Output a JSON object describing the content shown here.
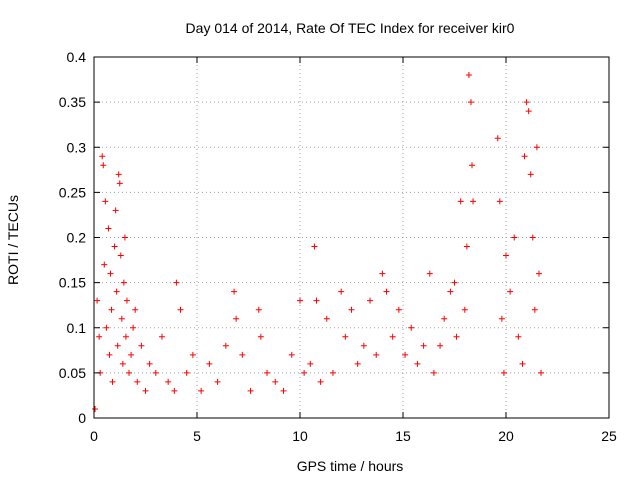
{
  "chart_data": {
    "type": "scatter",
    "title": "Day 014 of 2014, Rate Of TEC Index for receiver kir0",
    "xlabel": "GPS time / hours",
    "ylabel": "ROTI / TECUs",
    "xlim": [
      0,
      25
    ],
    "ylim": [
      0,
      0.4
    ],
    "xticks": [
      "0",
      "5",
      "10",
      "15",
      "20",
      "25"
    ],
    "yticks": [
      "0",
      "0.05",
      "0.1",
      "0.15",
      "0.2",
      "0.25",
      "0.3",
      "0.35",
      "0.4"
    ],
    "xtick_values": [
      0,
      5,
      10,
      15,
      20,
      25
    ],
    "ytick_values": [
      0,
      0.05,
      0.1,
      0.15,
      0.2,
      0.25,
      0.3,
      0.35,
      0.4
    ],
    "grid": true,
    "marker": "+",
    "point_color": "#ff0000",
    "x": [
      0.05,
      0.15,
      0.25,
      0.3,
      0.4,
      0.45,
      0.5,
      0.55,
      0.6,
      0.7,
      0.75,
      0.8,
      0.85,
      0.9,
      1.0,
      1.05,
      1.1,
      1.15,
      1.2,
      1.25,
      1.3,
      1.35,
      1.4,
      1.45,
      1.5,
      1.55,
      1.6,
      1.7,
      1.8,
      1.9,
      2.0,
      2.1,
      2.3,
      2.5,
      2.7,
      3.0,
      3.3,
      3.6,
      3.9,
      4.0,
      4.2,
      4.5,
      4.8,
      5.2,
      5.6,
      6.0,
      6.4,
      6.8,
      6.9,
      7.2,
      7.6,
      8.0,
      8.1,
      8.4,
      8.8,
      9.2,
      9.6,
      10.0,
      10.2,
      10.5,
      10.7,
      10.8,
      11.0,
      11.3,
      11.6,
      12.0,
      12.2,
      12.5,
      12.8,
      13.1,
      13.4,
      13.7,
      14.0,
      14.2,
      14.5,
      14.8,
      15.1,
      15.4,
      15.7,
      16.0,
      16.3,
      16.5,
      16.8,
      17.0,
      17.3,
      17.5,
      17.6,
      17.8,
      18.0,
      18.1,
      18.2,
      18.3,
      18.35,
      18.4,
      19.6,
      19.7,
      19.8,
      19.9,
      20.0,
      20.2,
      20.4,
      20.6,
      20.8,
      20.9,
      21.0,
      21.1,
      21.2,
      21.3,
      21.4,
      21.5,
      21.6,
      21.7
    ],
    "y": [
      0.01,
      0.13,
      0.09,
      0.05,
      0.29,
      0.28,
      0.17,
      0.24,
      0.1,
      0.21,
      0.07,
      0.16,
      0.12,
      0.04,
      0.19,
      0.23,
      0.14,
      0.08,
      0.27,
      0.26,
      0.18,
      0.11,
      0.06,
      0.15,
      0.2,
      0.09,
      0.13,
      0.05,
      0.07,
      0.1,
      0.12,
      0.04,
      0.08,
      0.03,
      0.06,
      0.05,
      0.09,
      0.04,
      0.03,
      0.15,
      0.12,
      0.05,
      0.07,
      0.03,
      0.06,
      0.04,
      0.08,
      0.14,
      0.11,
      0.07,
      0.03,
      0.12,
      0.09,
      0.05,
      0.04,
      0.03,
      0.07,
      0.13,
      0.05,
      0.06,
      0.19,
      0.13,
      0.04,
      0.11,
      0.05,
      0.14,
      0.09,
      0.12,
      0.06,
      0.08,
      0.13,
      0.07,
      0.16,
      0.14,
      0.09,
      0.12,
      0.07,
      0.1,
      0.06,
      0.08,
      0.16,
      0.05,
      0.08,
      0.11,
      0.14,
      0.15,
      0.09,
      0.24,
      0.12,
      0.19,
      0.38,
      0.35,
      0.28,
      0.24,
      0.31,
      0.24,
      0.11,
      0.05,
      0.18,
      0.14,
      0.2,
      0.09,
      0.06,
      0.29,
      0.35,
      0.34,
      0.27,
      0.2,
      0.12,
      0.3,
      0.16,
      0.05
    ]
  }
}
